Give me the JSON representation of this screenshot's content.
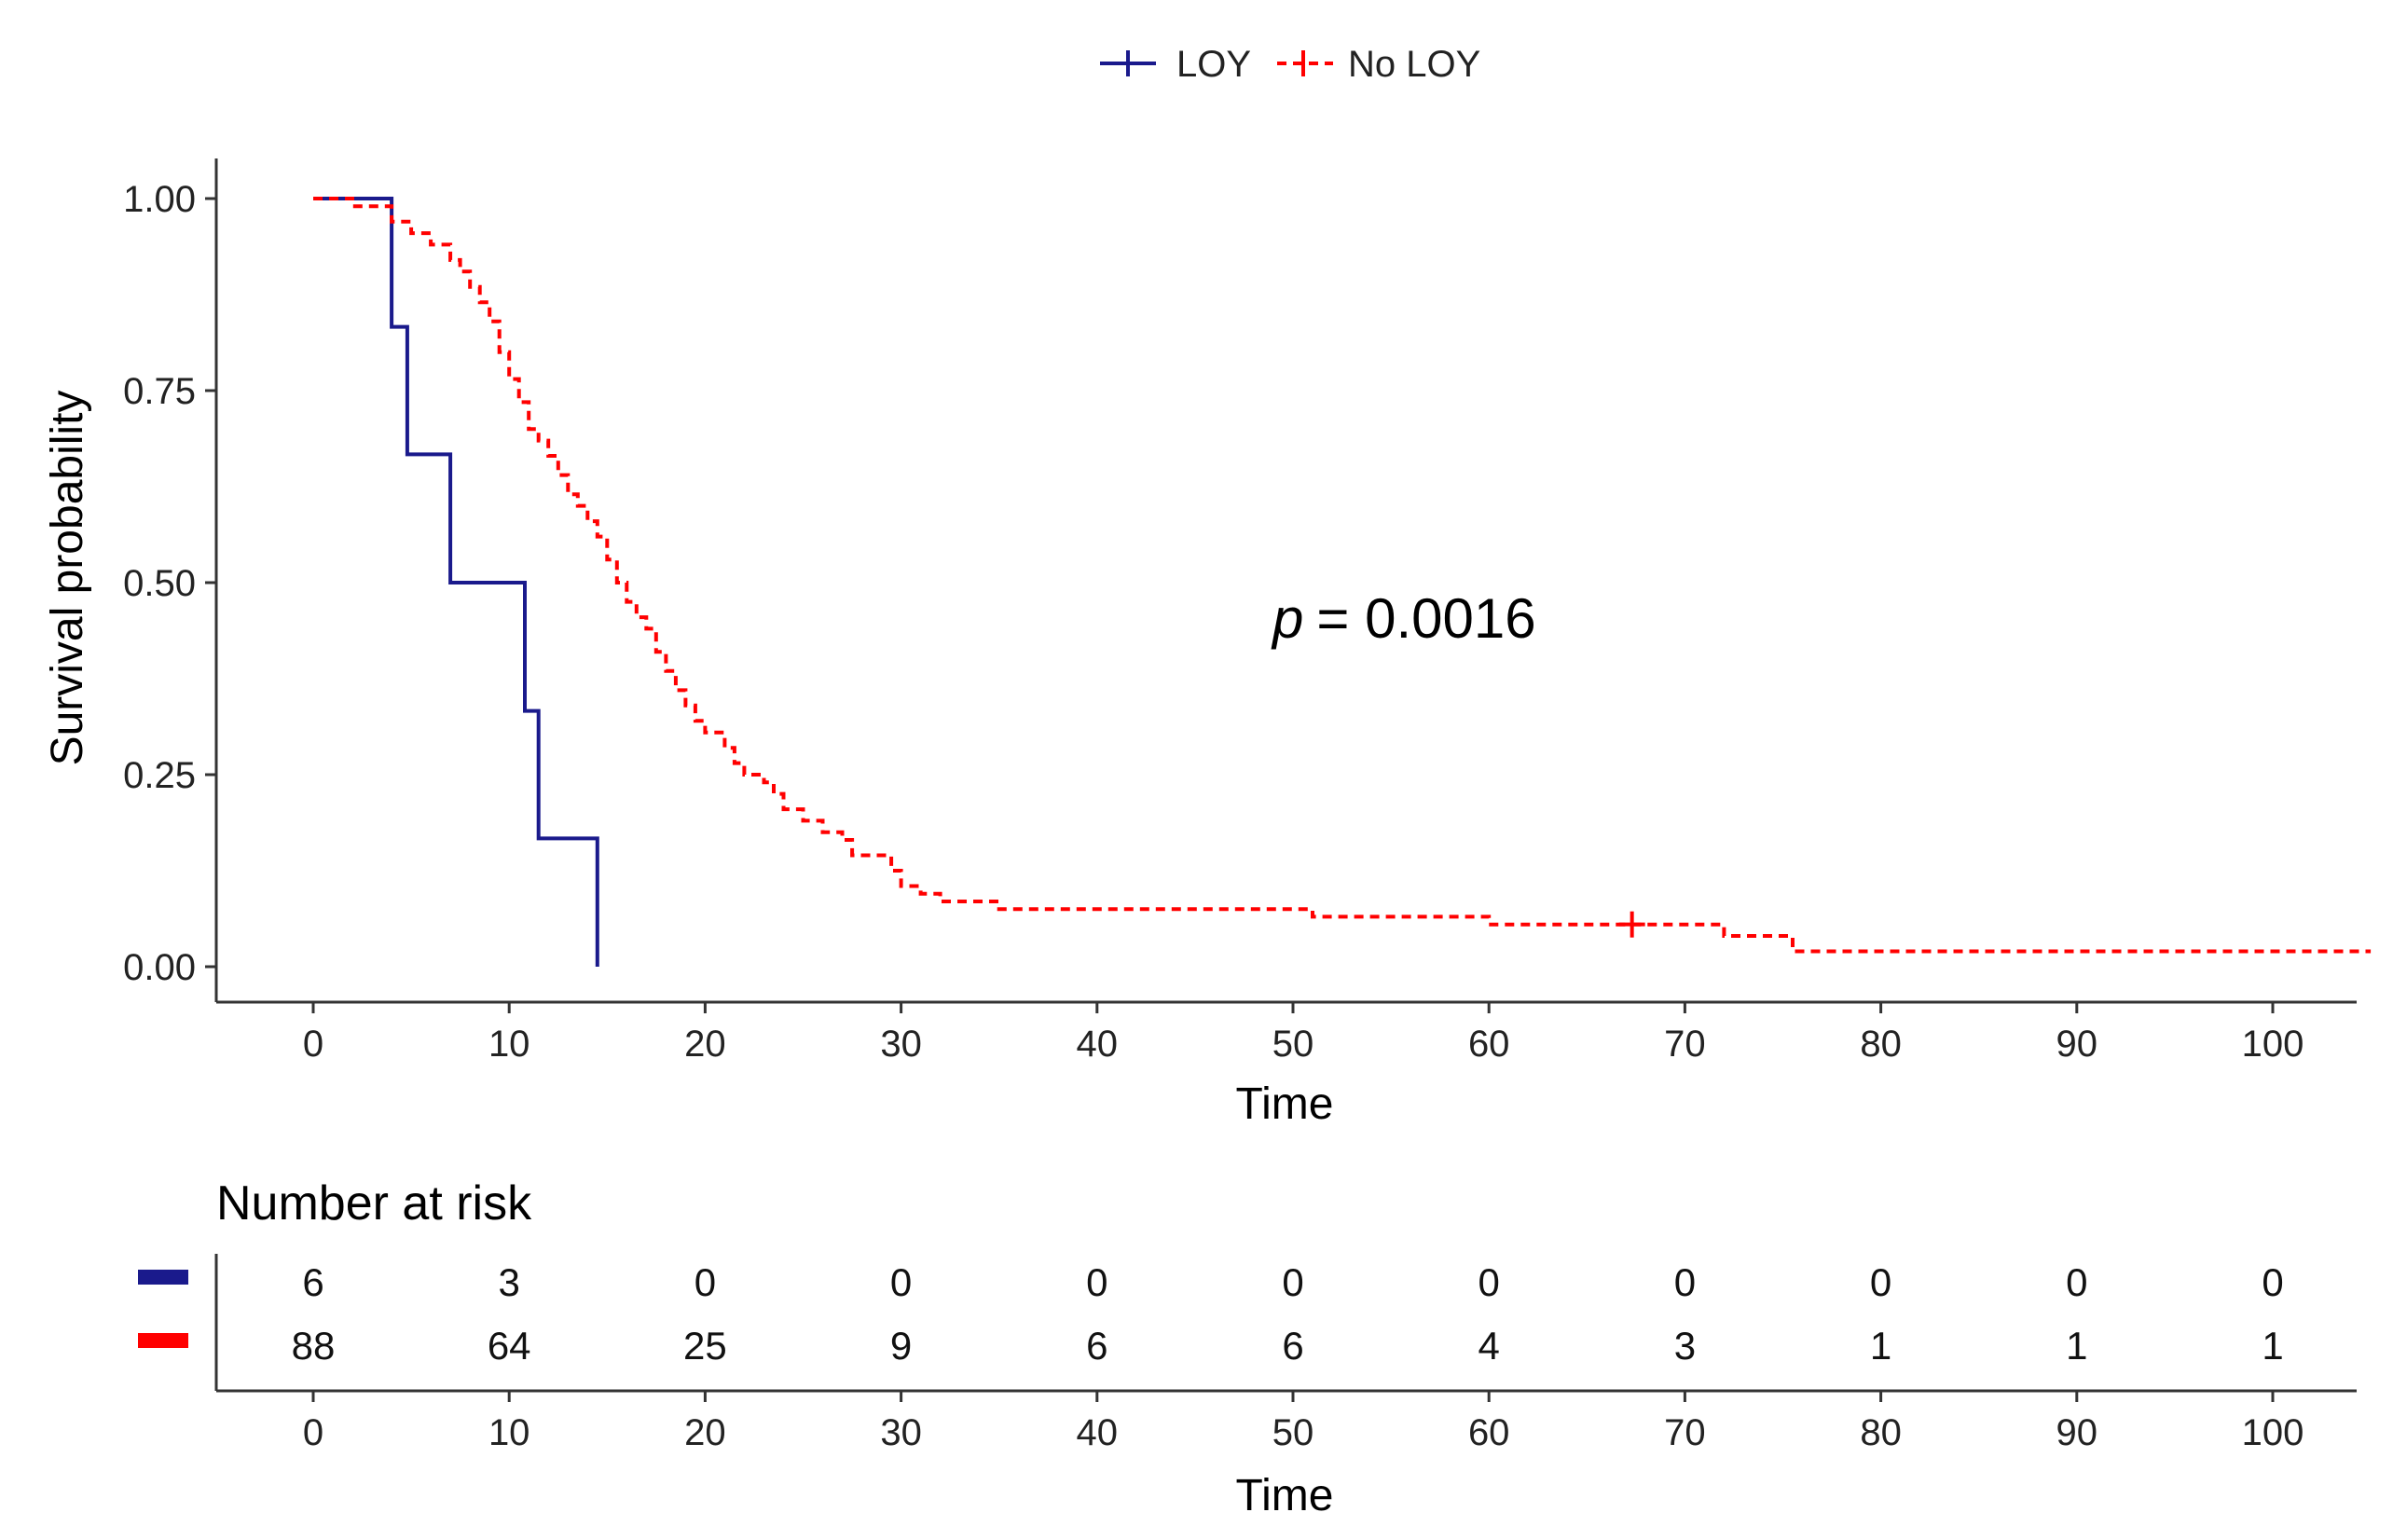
{
  "chart_data": {
    "type": "line",
    "title": "",
    "xlabel": "Time",
    "ylabel": "Survival probability",
    "xlim": [
      -5,
      105
    ],
    "ylim": [
      -0.05,
      1.05
    ],
    "x_ticks": [
      "0",
      "10",
      "20",
      "30",
      "40",
      "50",
      "60",
      "70",
      "80",
      "90",
      "100"
    ],
    "y_ticks": [
      "0.00",
      "0.25",
      "0.50",
      "0.75",
      "1.00"
    ],
    "grid": false,
    "legend_position": "top",
    "annotation": {
      "p_symbol": "p",
      "p_value": "= 0.0016"
    },
    "series": [
      {
        "name": "LOY",
        "color": "#1a1a8c",
        "style": "solid",
        "steps": [
          [
            0,
            1.0
          ],
          [
            4.0,
            1.0
          ],
          [
            4.0,
            0.833
          ],
          [
            4.8,
            0.833
          ],
          [
            4.8,
            0.667
          ],
          [
            7.0,
            0.667
          ],
          [
            7.0,
            0.5
          ],
          [
            10.8,
            0.5
          ],
          [
            10.8,
            0.333
          ],
          [
            11.5,
            0.333
          ],
          [
            11.5,
            0.167
          ],
          [
            14.5,
            0.167
          ],
          [
            14.5,
            0.0
          ]
        ],
        "censor": []
      },
      {
        "name": "No LOY",
        "color": "#ff0000",
        "style": "dashed",
        "steps": [
          [
            0,
            1.0
          ],
          [
            2.0,
            1.0
          ],
          [
            2.0,
            0.99
          ],
          [
            4.0,
            0.99
          ],
          [
            4.0,
            0.97
          ],
          [
            5.0,
            0.97
          ],
          [
            5.0,
            0.955
          ],
          [
            6.0,
            0.955
          ],
          [
            6.0,
            0.94
          ],
          [
            7.0,
            0.94
          ],
          [
            7.0,
            0.92
          ],
          [
            7.5,
            0.92
          ],
          [
            7.5,
            0.905
          ],
          [
            8.0,
            0.905
          ],
          [
            8.0,
            0.885
          ],
          [
            8.5,
            0.885
          ],
          [
            8.5,
            0.865
          ],
          [
            9.0,
            0.865
          ],
          [
            9.0,
            0.84
          ],
          [
            9.5,
            0.84
          ],
          [
            9.5,
            0.8
          ],
          [
            10.0,
            0.8
          ],
          [
            10.0,
            0.765
          ],
          [
            10.5,
            0.765
          ],
          [
            10.5,
            0.735
          ],
          [
            11.0,
            0.735
          ],
          [
            11.0,
            0.7
          ],
          [
            11.5,
            0.7
          ],
          [
            11.5,
            0.685
          ],
          [
            12.0,
            0.685
          ],
          [
            12.0,
            0.665
          ],
          [
            12.5,
            0.665
          ],
          [
            12.5,
            0.64
          ],
          [
            13.0,
            0.64
          ],
          [
            13.0,
            0.615
          ],
          [
            13.5,
            0.615
          ],
          [
            13.5,
            0.6
          ],
          [
            14.0,
            0.6
          ],
          [
            14.0,
            0.58
          ],
          [
            14.5,
            0.58
          ],
          [
            14.5,
            0.56
          ],
          [
            15.0,
            0.56
          ],
          [
            15.0,
            0.53
          ],
          [
            15.5,
            0.53
          ],
          [
            15.5,
            0.5
          ],
          [
            16.0,
            0.5
          ],
          [
            16.0,
            0.475
          ],
          [
            16.5,
            0.475
          ],
          [
            16.5,
            0.455
          ],
          [
            17.0,
            0.455
          ],
          [
            17.0,
            0.44
          ],
          [
            17.5,
            0.44
          ],
          [
            17.5,
            0.41
          ],
          [
            18.0,
            0.41
          ],
          [
            18.0,
            0.385
          ],
          [
            18.5,
            0.385
          ],
          [
            18.5,
            0.36
          ],
          [
            19.0,
            0.36
          ],
          [
            19.0,
            0.34
          ],
          [
            19.5,
            0.34
          ],
          [
            19.5,
            0.32
          ],
          [
            20.0,
            0.32
          ],
          [
            20.0,
            0.305
          ],
          [
            21.0,
            0.305
          ],
          [
            21.0,
            0.285
          ],
          [
            21.5,
            0.285
          ],
          [
            21.5,
            0.265
          ],
          [
            22.0,
            0.265
          ],
          [
            22.0,
            0.25
          ],
          [
            23.0,
            0.25
          ],
          [
            23.0,
            0.24
          ],
          [
            23.5,
            0.24
          ],
          [
            23.5,
            0.225
          ],
          [
            24.0,
            0.225
          ],
          [
            24.0,
            0.205
          ],
          [
            25.0,
            0.205
          ],
          [
            25.0,
            0.19
          ],
          [
            26.0,
            0.19
          ],
          [
            26.0,
            0.175
          ],
          [
            27.0,
            0.175
          ],
          [
            27.0,
            0.165
          ],
          [
            27.5,
            0.165
          ],
          [
            27.5,
            0.145
          ],
          [
            29.5,
            0.145
          ],
          [
            29.5,
            0.125
          ],
          [
            30.0,
            0.125
          ],
          [
            30.0,
            0.105
          ],
          [
            31.0,
            0.105
          ],
          [
            31.0,
            0.095
          ],
          [
            32.0,
            0.095
          ],
          [
            32.0,
            0.085
          ],
          [
            35.0,
            0.085
          ],
          [
            35.0,
            0.075
          ],
          [
            51.0,
            0.075
          ],
          [
            51.0,
            0.065
          ],
          [
            60.0,
            0.065
          ],
          [
            60.0,
            0.055
          ],
          [
            72.0,
            0.055
          ],
          [
            72.0,
            0.04
          ],
          [
            75.5,
            0.04
          ],
          [
            75.5,
            0.02
          ],
          [
            105,
            0.02
          ]
        ],
        "censor": [
          [
            67.3,
            0.055
          ]
        ]
      }
    ],
    "risk_table": {
      "title": "Number at risk",
      "xlabel": "Time",
      "times": [
        0,
        10,
        20,
        30,
        40,
        50,
        60,
        70,
        80,
        90,
        100
      ],
      "rows": [
        {
          "name": "LOY",
          "color": "#1a1a8c",
          "values": [
            "6",
            "3",
            "0",
            "0",
            "0",
            "0",
            "0",
            "0",
            "0",
            "0",
            "0"
          ]
        },
        {
          "name": "No LOY",
          "color": "#ff0000",
          "values": [
            "88",
            "64",
            "25",
            "9",
            "6",
            "6",
            "4",
            "3",
            "1",
            "1",
            "1"
          ]
        }
      ]
    }
  }
}
